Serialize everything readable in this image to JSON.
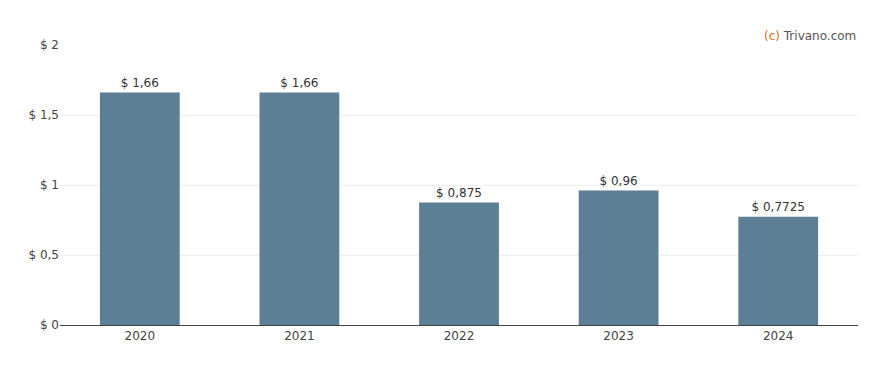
{
  "chart_data": {
    "type": "bar",
    "categories": [
      "2020",
      "2021",
      "2022",
      "2023",
      "2024"
    ],
    "values": [
      1.66,
      1.66,
      0.875,
      0.96,
      0.7725
    ],
    "value_labels": [
      "$ 1,66",
      "$ 1,66",
      "$ 0,875",
      "$ 0,96",
      "$ 0,7725"
    ],
    "data_labels": true,
    "color": "#5d7f96",
    "ylim": [
      0,
      2.0
    ],
    "yticks": [
      {
        "value": 0,
        "label": "$ 0"
      },
      {
        "value": 0.5,
        "label": "$ 0,5"
      },
      {
        "value": 1.0,
        "label": "$ 1"
      },
      {
        "value": 1.5,
        "label": "$ 1,5"
      },
      {
        "value": 2.0,
        "label": "$ 2"
      }
    ],
    "grid": true,
    "annotations": [
      {
        "text": "(c)",
        "color": "#e07020"
      },
      {
        "text": "Trivano.com",
        "color": "#555555"
      }
    ]
  }
}
